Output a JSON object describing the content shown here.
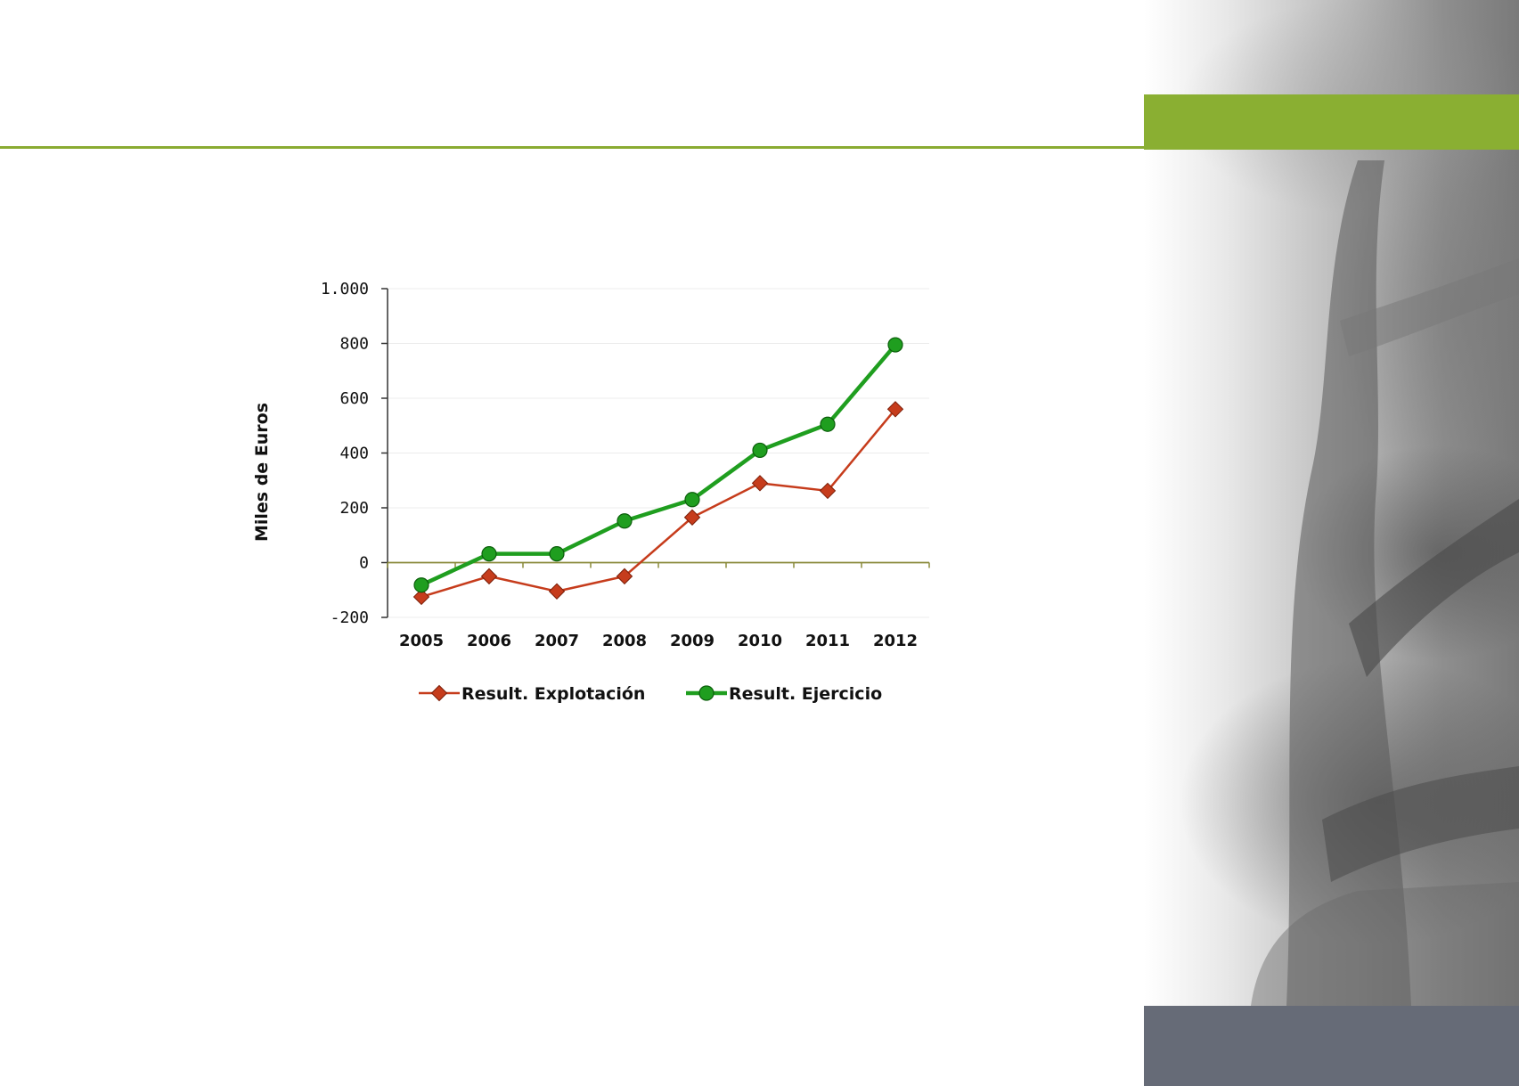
{
  "colors": {
    "accent_green": "#8aaf32",
    "slate": "#666b77",
    "series_explotacion": "#c63c1c",
    "series_ejercicio": "#1f9e1f"
  },
  "decor": {
    "photo_subject": "tree-photo"
  },
  "chart_data": {
    "type": "line",
    "ylabel": "Miles de Euros",
    "xlabel": "",
    "title": "",
    "categories": [
      "2005",
      "2006",
      "2007",
      "2008",
      "2009",
      "2010",
      "2011",
      "2012"
    ],
    "ylim": [
      -200,
      1000
    ],
    "yticks": [
      -200,
      0,
      200,
      400,
      600,
      800,
      1000
    ],
    "ytick_labels": [
      "-200",
      "0",
      "200",
      "400",
      "600",
      "800",
      "1.000"
    ],
    "grid": true,
    "legend_position": "bottom",
    "series": [
      {
        "name": "Result. Explotación",
        "marker": "diamond",
        "color": "#c63c1c",
        "values": [
          -125,
          -50,
          -105,
          -50,
          165,
          290,
          262,
          560
        ]
      },
      {
        "name": "Result. Ejercicio",
        "marker": "circle",
        "color": "#1f9e1f",
        "values": [
          -82,
          32,
          32,
          152,
          230,
          410,
          505,
          795
        ]
      }
    ]
  }
}
